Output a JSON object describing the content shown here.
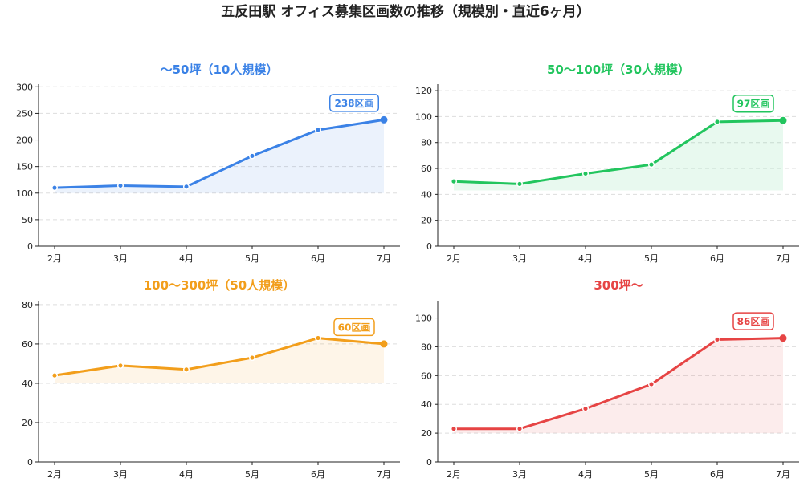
{
  "title": "五反田駅 オフィス募集区画数の推移（規模別・直近6ヶ月）",
  "chart_data": [
    {
      "type": "line",
      "title": "〜50坪（10人規模）",
      "color": "#3b82e6",
      "categories": [
        "2月",
        "3月",
        "4月",
        "5月",
        "6月",
        "7月"
      ],
      "values": [
        110,
        114,
        112,
        170,
        219,
        238
      ],
      "ylim": [
        0,
        305
      ],
      "yticks": [
        0,
        50,
        100,
        150,
        200,
        250,
        300
      ],
      "fill_base": 100,
      "annotation": "238区画",
      "grid": true
    },
    {
      "type": "line",
      "title": "50〜100坪（30人規模）",
      "color": "#22c55e",
      "categories": [
        "2月",
        "3月",
        "4月",
        "5月",
        "6月",
        "7月"
      ],
      "values": [
        50,
        48,
        56,
        63,
        96,
        97
      ],
      "ylim": [
        0,
        125
      ],
      "yticks": [
        0,
        20,
        40,
        60,
        80,
        100,
        120
      ],
      "fill_base": 43,
      "annotation": "97区画",
      "grid": true
    },
    {
      "type": "line",
      "title": "100〜300坪（50人規模）",
      "color": "#f29e1b",
      "categories": [
        "2月",
        "3月",
        "4月",
        "5月",
        "6月",
        "7月"
      ],
      "values": [
        44,
        49,
        47,
        53,
        63,
        60
      ],
      "ylim": [
        0,
        82
      ],
      "yticks": [
        0,
        20,
        40,
        60,
        80
      ],
      "fill_base": 40,
      "annotation": "60区画",
      "grid": true
    },
    {
      "type": "line",
      "title": "300坪〜",
      "color": "#e64444",
      "categories": [
        "2月",
        "3月",
        "4月",
        "5月",
        "6月",
        "7月"
      ],
      "values": [
        23,
        23,
        37,
        54,
        85,
        86
      ],
      "ylim": [
        0,
        112
      ],
      "yticks": [
        0,
        20,
        40,
        60,
        80,
        100
      ],
      "fill_base": 20,
      "annotation": "86区画",
      "grid": true
    }
  ]
}
